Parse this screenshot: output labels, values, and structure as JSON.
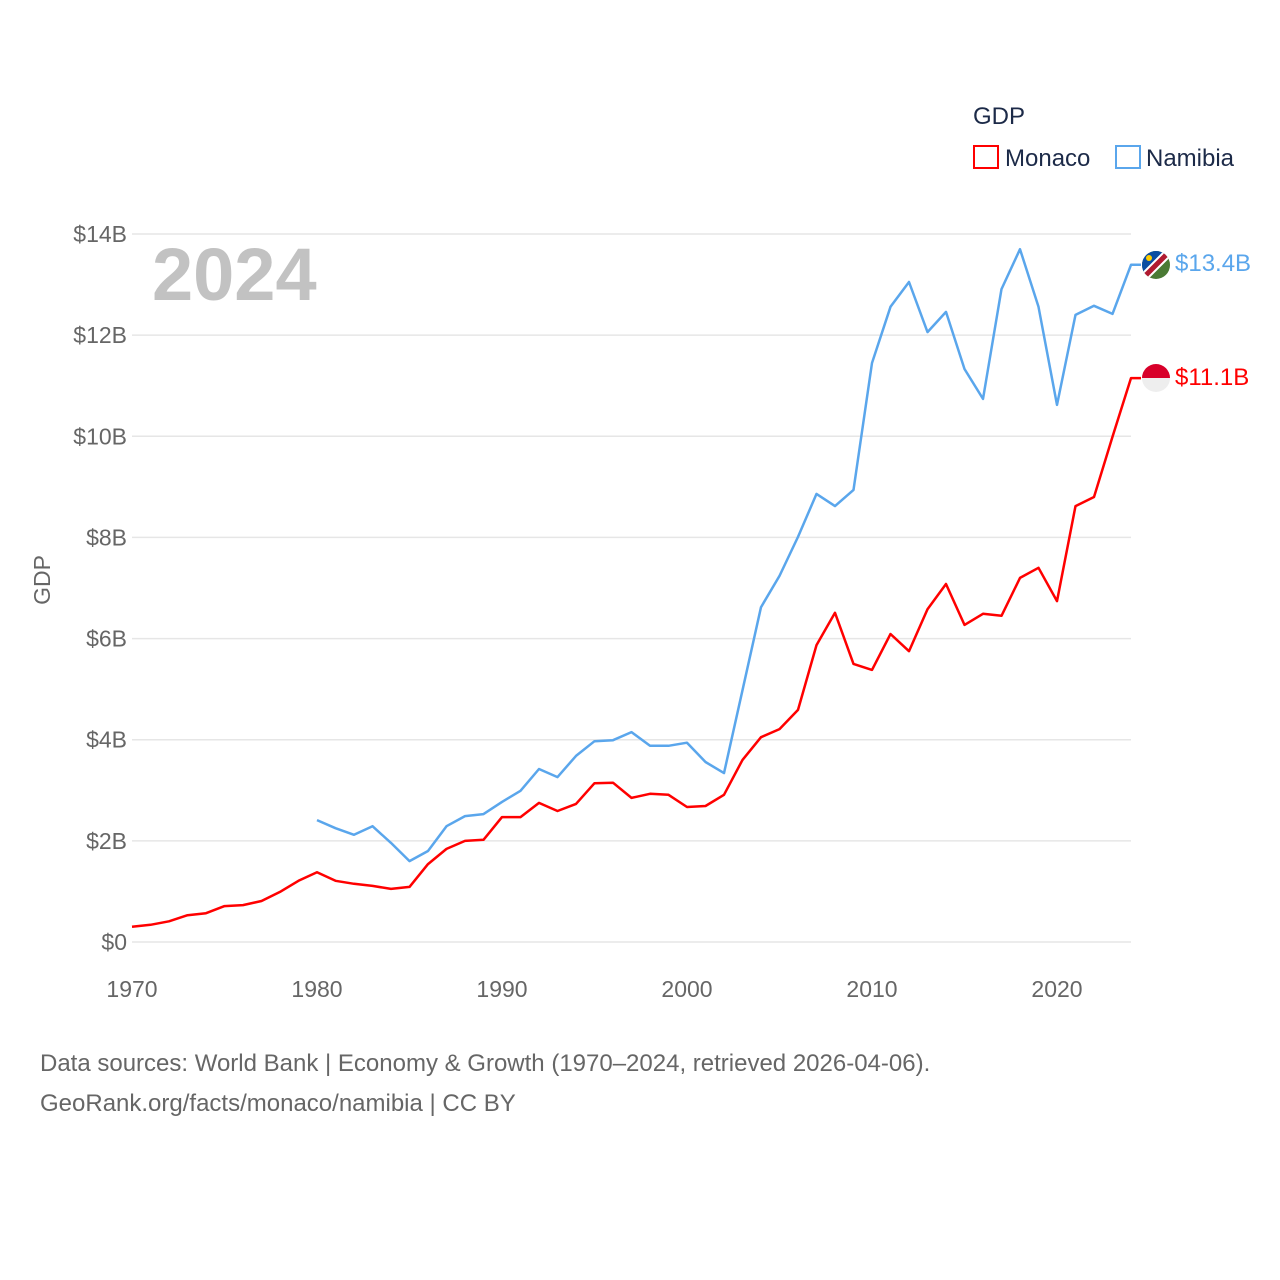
{
  "chart_data": {
    "type": "line",
    "title": "GDP",
    "year_label": "2024",
    "xlabel": "",
    "ylabel": "GDP",
    "xlim": [
      1970,
      2024
    ],
    "ylim": [
      0,
      14
    ],
    "y_unit": "billion USD",
    "x_ticks": [
      "1970",
      "1980",
      "1990",
      "2000",
      "2010",
      "2020"
    ],
    "y_ticks": [
      {
        "v": 0,
        "label": "$0"
      },
      {
        "v": 2,
        "label": "$2B"
      },
      {
        "v": 4,
        "label": "$4B"
      },
      {
        "v": 6,
        "label": "$6B"
      },
      {
        "v": 8,
        "label": "$8B"
      },
      {
        "v": 10,
        "label": "$10B"
      },
      {
        "v": 12,
        "label": "$12B"
      },
      {
        "v": 14,
        "label": "$14B"
      }
    ],
    "grid": true,
    "legend_position": "top-right",
    "series": [
      {
        "name": "Monaco",
        "color": "#ff0000",
        "end_label": "$11.1B",
        "start_year": 1970,
        "values": [
          0.3,
          0.34,
          0.41,
          0.53,
          0.57,
          0.71,
          0.73,
          0.81,
          0.99,
          1.21,
          1.38,
          1.21,
          1.15,
          1.11,
          1.05,
          1.09,
          1.54,
          1.84,
          2.0,
          2.02,
          2.47,
          2.47,
          2.75,
          2.59,
          2.73,
          3.14,
          3.15,
          2.85,
          2.93,
          2.91,
          2.67,
          2.69,
          2.91,
          3.6,
          4.05,
          4.21,
          4.59,
          5.87,
          6.51,
          5.5,
          5.38,
          6.09,
          5.75,
          6.58,
          7.08,
          6.27,
          6.49,
          6.45,
          7.2,
          7.4,
          6.74,
          8.62,
          8.8,
          9.99,
          11.15
        ]
      },
      {
        "name": "Namibia",
        "color": "#5aa6ec",
        "end_label": "$13.4B",
        "start_year": 1980,
        "values": [
          2.41,
          2.25,
          2.12,
          2.29,
          1.96,
          1.6,
          1.8,
          2.29,
          2.49,
          2.53,
          2.77,
          2.99,
          3.42,
          3.26,
          3.68,
          3.97,
          3.99,
          4.15,
          3.88,
          3.88,
          3.94,
          3.56,
          3.34,
          4.98,
          6.62,
          7.24,
          8.01,
          8.86,
          8.62,
          8.94,
          11.45,
          12.56,
          13.05,
          12.06,
          12.46,
          11.33,
          10.74,
          12.91,
          13.7,
          12.56,
          10.62,
          12.4,
          12.58,
          12.42,
          13.39
        ]
      }
    ]
  },
  "source": {
    "line1": "Data sources: World Bank | Economy & Growth (1970–2024, retrieved 2026-04-06).",
    "line2": "GeoRank.org/facts/monaco/namibia | CC BY"
  }
}
